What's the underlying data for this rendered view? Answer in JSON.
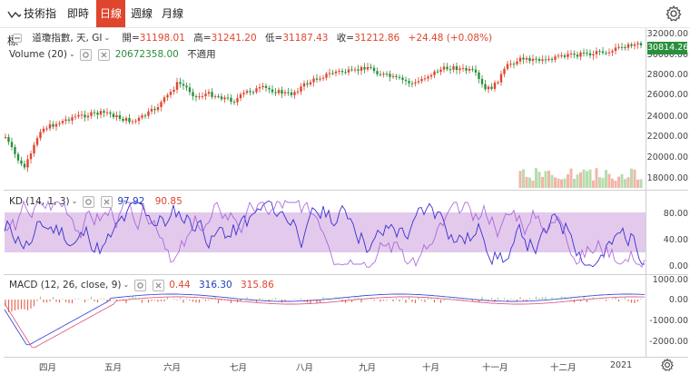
{
  "toolbar": {
    "indicators_label": "技術指標",
    "tabs": [
      {
        "label": "即時",
        "active": false
      },
      {
        "label": "日線",
        "active": true
      },
      {
        "label": "週線",
        "active": false
      },
      {
        "label": "月線",
        "active": false
      }
    ],
    "settings_icon": "gear-icon"
  },
  "main_legend": {
    "collapse_icon": "minus-box-icon",
    "symbol": "道瓊指數, 天, GI",
    "open_label": "開=",
    "open": "31198.01",
    "high_label": "高=",
    "high": "31241.20",
    "low_label": "低=",
    "low": "31187.43",
    "close_label": "收=",
    "close": "31212.86",
    "change": "+24.48 (+0.08%)"
  },
  "volume_legend": {
    "label": "Volume (20)",
    "value": "20672358.00",
    "status": "不適用"
  },
  "kd_legend": {
    "label": "KD (14, 1, 3)",
    "k": "97.92",
    "d": "90.85"
  },
  "macd_legend": {
    "label": "MACD (12, 26, close, 9)",
    "hist": "0.44",
    "macd": "316.30",
    "signal": "315.86"
  },
  "price_axis": [
    "32000.00",
    "30000.00",
    "28000.00",
    "26000.00",
    "24000.00",
    "22000.00",
    "20000.00",
    "18000.00"
  ],
  "last_price": "30814.26",
  "kd_axis": [
    "80.00",
    "40.00",
    "0.00"
  ],
  "macd_axis": [
    "1000.00",
    "0.00",
    "-1000.00",
    "-2000.00"
  ],
  "months": [
    "四月",
    "五月",
    "六月",
    "七月",
    "八月",
    "九月",
    "十月",
    "十一月",
    "十二月",
    "2021"
  ],
  "colors": {
    "up": "#e0452d",
    "down": "#2a8f3c",
    "kd_band": "#d9b8e6",
    "k_line": "#3a2fd0",
    "d_line": "#9b4fd6",
    "macd_line": "#3b4fd8",
    "signal_line": "#e05f86",
    "active_tab": "#e0452d"
  }
}
